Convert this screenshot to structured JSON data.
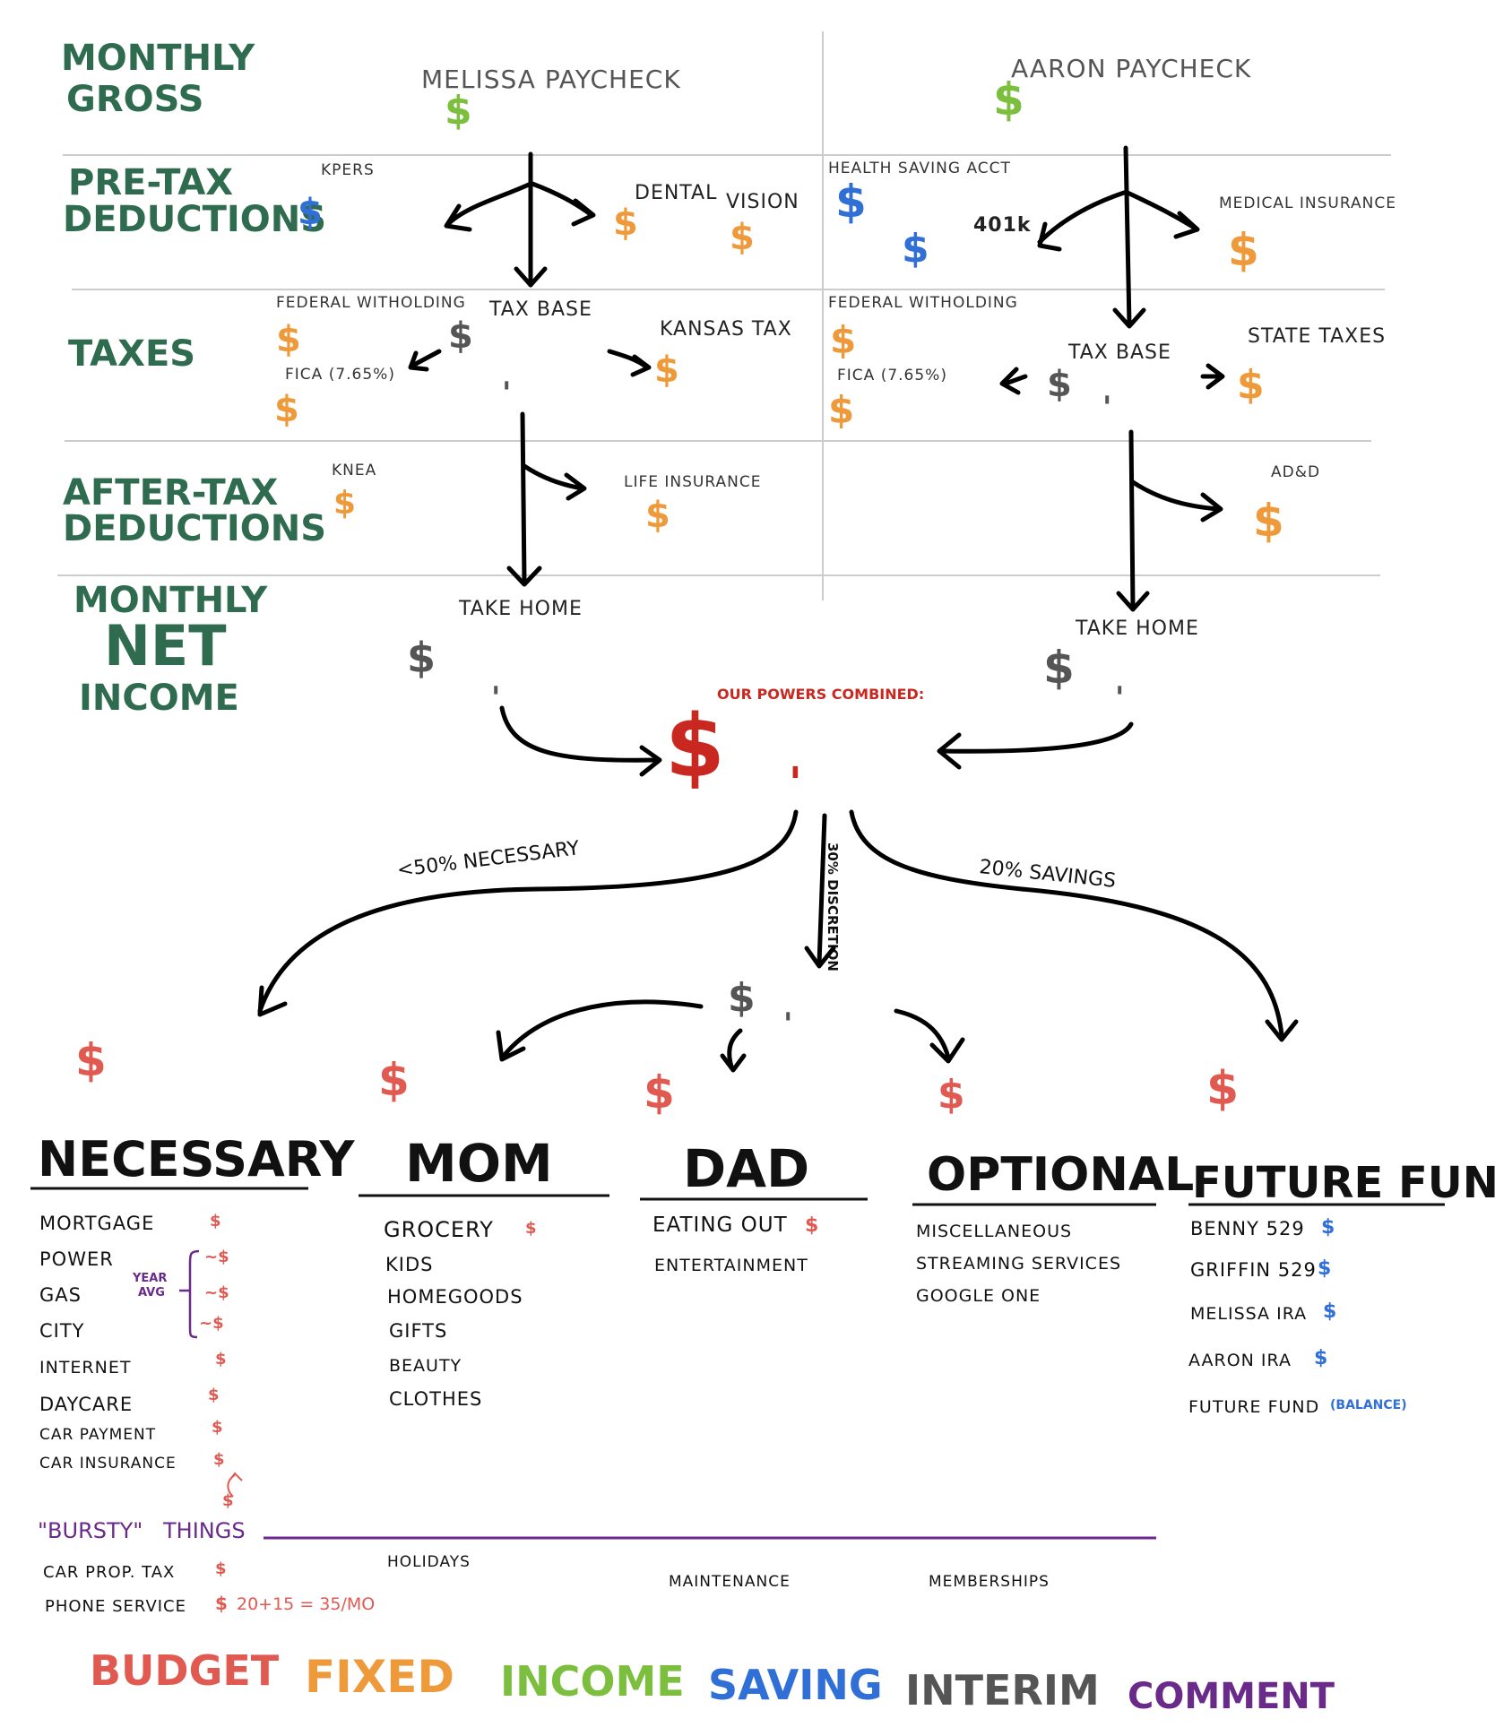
{
  "colors": {
    "green_header": "#2e6b4f",
    "income": "#7cbf3f",
    "saving": "#2f6fd6",
    "fixed": "#ee9a3a",
    "interim": "#555555",
    "budget": "#e05a52",
    "combined": "#c8281f",
    "comment": "#6a2a8a"
  },
  "rows": {
    "gross": [
      "MONTHLY",
      "GROSS"
    ],
    "pretax": [
      "PRE-TAX",
      "DEDUCTIONS"
    ],
    "taxes": "TAXES",
    "aftertax": [
      "AFTER-TAX",
      "DEDUCTIONS"
    ],
    "net": [
      "MONTHLY",
      "NET",
      "INCOME"
    ]
  },
  "symbol": "$",
  "tick": "'",
  "melissa": {
    "title": "MELISSA PAYCHECK",
    "kpers": "KPERS",
    "dental": "DENTAL",
    "vision": "VISION",
    "federal": "FEDERAL WITHOLDING",
    "fica": "FICA (7.65%)",
    "taxbase": "TAX BASE",
    "kansas": "KANSAS TAX",
    "knea": "KNEA",
    "life": "LIFE INSURANCE",
    "takehome": "TAKE HOME"
  },
  "aaron": {
    "title": "AARON PAYCHECK",
    "hsa": "HEALTH SAVING ACCT",
    "k401": "401k",
    "medical": "MEDICAL INSURANCE",
    "federal": "FEDERAL WITHOLDING",
    "fica": "FICA (7.65%)",
    "taxbase": "TAX BASE",
    "state": "STATE TAXES",
    "add": "AD&D",
    "takehome": "TAKE HOME"
  },
  "combined": "OUR POWERS COMBINED:",
  "splits": {
    "necessary": "<50% NECESSARY",
    "discretion": "30% DISCRETION",
    "savings": "20% SAVINGS"
  },
  "categories": {
    "necessary": {
      "title": "NECESSARY",
      "items": [
        "MORTGAGE",
        "POWER",
        "GAS",
        "CITY",
        "INTERNET",
        "DAYCARE",
        "CAR PAYMENT",
        "CAR INSURANCE"
      ],
      "approx": "~$",
      "yearavg": [
        "YEAR",
        "AVG"
      ],
      "annual": "$"
    },
    "mom": {
      "title": "MOM",
      "items": [
        "GROCERY",
        "KIDS",
        "HOMEGOODS",
        "GIFTS",
        "BEAUTY",
        "CLOTHES"
      ]
    },
    "dad": {
      "title": "DAD",
      "items": [
        "EATING OUT",
        "ENTERTAINMENT"
      ]
    },
    "optional": {
      "title": "OPTIONAL",
      "items": [
        "MISCELLANEOUS",
        "STREAMING SERVICES",
        "GOOGLE ONE"
      ]
    },
    "future": {
      "title": "FUTURE FUND",
      "items": [
        "BENNY 529",
        "GRIFFIN 529",
        "MELISSA IRA",
        "AARON IRA",
        "FUTURE FUND"
      ],
      "balance": "(BALANCE)"
    }
  },
  "bursty": {
    "title_quoted": "\"BURSTY\"",
    "title_rest": "THINGS",
    "items": [
      "CAR PROP. TAX",
      "PHONE SERVICE"
    ],
    "phone_calc": "20+15 = 35/MO",
    "mom": "HOLIDAYS",
    "dad": "MAINTENANCE",
    "optional": "MEMBERSHIPS"
  },
  "legend": {
    "budget": "BUDGET",
    "fixed": "FIXED",
    "income": "INCOME",
    "saving": "SAVING",
    "interim": "INTERIM",
    "comment": "COMMENT"
  }
}
